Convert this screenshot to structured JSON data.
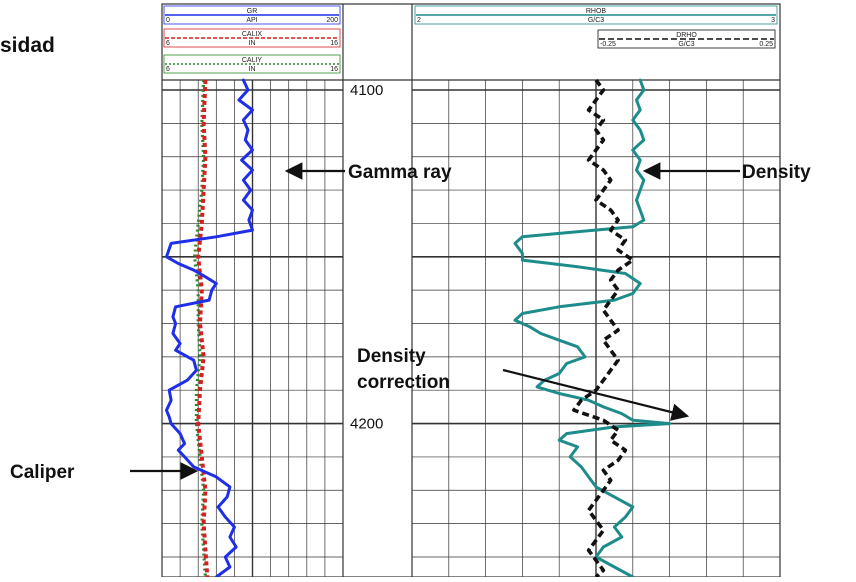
{
  "page": {
    "title_fragment": "sidad"
  },
  "colors": {
    "gamma_ray": "#1f2ee8",
    "density": "#1f8c8c",
    "density_correction": "#111111",
    "caliper_x": "#d42020",
    "caliper_y": "#2a8a2a",
    "grid": "#333333"
  },
  "chart_data": {
    "type": "line",
    "depth_axis": {
      "ticks": [
        "4100",
        "4200"
      ],
      "range": [
        4097,
        4246
      ]
    },
    "tracks": [
      {
        "name": "track-1",
        "curves": [
          {
            "mnemonic": "GR",
            "min": "0",
            "unit": "API",
            "max": "200",
            "style": "solid",
            "color": "#1f2ee8",
            "scale": [
              0,
              200
            ],
            "points": [
              [
                4097,
                90
              ],
              [
                4100,
                95
              ],
              [
                4103,
                85
              ],
              [
                4106,
                100
              ],
              [
                4109,
                90
              ],
              [
                4112,
                95
              ],
              [
                4115,
                92
              ],
              [
                4118,
                100
              ],
              [
                4121,
                88
              ],
              [
                4124,
                100
              ],
              [
                4127,
                90
              ],
              [
                4130,
                98
              ],
              [
                4133,
                90
              ],
              [
                4136,
                100
              ],
              [
                4139,
                96
              ],
              [
                4142,
                100
              ],
              [
                4144,
                60
              ],
              [
                4146,
                10
              ],
              [
                4150,
                5
              ],
              [
                4152,
                18
              ],
              [
                4154,
                35
              ],
              [
                4156,
                48
              ],
              [
                4158,
                60
              ],
              [
                4160,
                55
              ],
              [
                4163,
                52
              ],
              [
                4165,
                15
              ],
              [
                4168,
                12
              ],
              [
                4170,
                15
              ],
              [
                4173,
                12
              ],
              [
                4176,
                20
              ],
              [
                4178,
                15
              ],
              [
                4181,
                35
              ],
              [
                4184,
                38
              ],
              [
                4187,
                28
              ],
              [
                4190,
                8
              ],
              [
                4193,
                10
              ],
              [
                4196,
                5
              ],
              [
                4198,
                8
              ],
              [
                4200,
                10
              ],
              [
                4203,
                20
              ],
              [
                4206,
                25
              ],
              [
                4208,
                18
              ],
              [
                4210,
                25
              ],
              [
                4213,
                35
              ],
              [
                4216,
                60
              ],
              [
                4219,
                75
              ],
              [
                4222,
                72
              ],
              [
                4225,
                62
              ],
              [
                4228,
                70
              ],
              [
                4231,
                80
              ],
              [
                4234,
                75
              ],
              [
                4237,
                82
              ],
              [
                4240,
                70
              ],
              [
                4243,
                75
              ],
              [
                4246,
                60
              ]
            ]
          },
          {
            "mnemonic": "CALIX",
            "min": "6",
            "unit": "IN",
            "max": "16",
            "style": "dashed",
            "color": "#d42020",
            "scale": [
              6,
              16
            ],
            "points": [
              [
                4097,
                8.4
              ],
              [
                4110,
                8.3
              ],
              [
                4120,
                8.4
              ],
              [
                4130,
                8.3
              ],
              [
                4140,
                8.2
              ],
              [
                4145,
                8.1
              ],
              [
                4150,
                8.0
              ],
              [
                4160,
                8.2
              ],
              [
                4170,
                8.1
              ],
              [
                4180,
                8.3
              ],
              [
                4190,
                8.1
              ],
              [
                4200,
                8.0
              ],
              [
                4210,
                8.2
              ],
              [
                4220,
                8.4
              ],
              [
                4230,
                8.3
              ],
              [
                4246,
                8.5
              ]
            ]
          },
          {
            "mnemonic": "CALIY",
            "min": "6",
            "unit": "IN",
            "max": "16",
            "style": "dotted",
            "color": "#2a8a2a",
            "scale": [
              6,
              16
            ],
            "points": [
              [
                4097,
                8.3
              ],
              [
                4110,
                8.2
              ],
              [
                4120,
                8.3
              ],
              [
                4130,
                8.2
              ],
              [
                4140,
                8.0
              ],
              [
                4145,
                7.9
              ],
              [
                4150,
                7.8
              ],
              [
                4160,
                8.0
              ],
              [
                4170,
                8.0
              ],
              [
                4180,
                8.1
              ],
              [
                4190,
                7.9
              ],
              [
                4200,
                7.9
              ],
              [
                4210,
                8.1
              ],
              [
                4220,
                8.3
              ],
              [
                4230,
                8.2
              ],
              [
                4246,
                8.4
              ]
            ]
          }
        ]
      },
      {
        "name": "track-2",
        "curves": [
          {
            "mnemonic": "RHOB",
            "min": "2",
            "unit": "G/C3",
            "max": "3",
            "style": "solid",
            "color": "#1f8c8c",
            "scale": [
              2,
              3
            ],
            "points": [
              [
                4097,
                2.62
              ],
              [
                4100,
                2.63
              ],
              [
                4103,
                2.61
              ],
              [
                4106,
                2.62
              ],
              [
                4109,
                2.6
              ],
              [
                4112,
                2.62
              ],
              [
                4115,
                2.63
              ],
              [
                4118,
                2.6
              ],
              [
                4121,
                2.62
              ],
              [
                4124,
                2.61
              ],
              [
                4127,
                2.63
              ],
              [
                4130,
                2.62
              ],
              [
                4133,
                2.61
              ],
              [
                4136,
                2.62
              ],
              [
                4139,
                2.63
              ],
              [
                4141,
                2.6
              ],
              [
                4143,
                2.4
              ],
              [
                4144,
                2.3
              ],
              [
                4146,
                2.28
              ],
              [
                4149,
                2.3
              ],
              [
                4151,
                2.3
              ],
              [
                4153,
                2.45
              ],
              [
                4155,
                2.58
              ],
              [
                4158,
                2.62
              ],
              [
                4161,
                2.6
              ],
              [
                4163,
                2.55
              ],
              [
                4165,
                2.4
              ],
              [
                4167,
                2.3
              ],
              [
                4169,
                2.28
              ],
              [
                4171,
                2.32
              ],
              [
                4173,
                2.35
              ],
              [
                4175,
                2.4
              ],
              [
                4177,
                2.45
              ],
              [
                4180,
                2.47
              ],
              [
                4182,
                2.42
              ],
              [
                4185,
                2.4
              ],
              [
                4187,
                2.36
              ],
              [
                4189,
                2.34
              ],
              [
                4191,
                2.4
              ],
              [
                4193,
                2.48
              ],
              [
                4195,
                2.52
              ],
              [
                4197,
                2.57
              ],
              [
                4199,
                2.6
              ],
              [
                4200,
                2.7
              ],
              [
                4201,
                2.55
              ],
              [
                4203,
                2.42
              ],
              [
                4205,
                2.4
              ],
              [
                4207,
                2.45
              ],
              [
                4210,
                2.43
              ],
              [
                4213,
                2.46
              ],
              [
                4216,
                2.48
              ],
              [
                4219,
                2.5
              ],
              [
                4222,
                2.55
              ],
              [
                4225,
                2.6
              ],
              [
                4228,
                2.58
              ],
              [
                4231,
                2.55
              ],
              [
                4234,
                2.57
              ],
              [
                4237,
                2.52
              ],
              [
                4240,
                2.5
              ],
              [
                4243,
                2.55
              ],
              [
                4246,
                2.6
              ]
            ]
          },
          {
            "mnemonic": "DRHO",
            "min": "-0.25",
            "unit": "G/C3",
            "max": "0.25",
            "style": "dashed",
            "color": "#111111",
            "scale": [
              -0.25,
              0.25
            ],
            "points": [
              [
                4097,
                0.0
              ],
              [
                4100,
                0.01
              ],
              [
                4103,
                0.0
              ],
              [
                4106,
                -0.01
              ],
              [
                4109,
                0.01
              ],
              [
                4112,
                0.0
              ],
              [
                4115,
                0.01
              ],
              [
                4118,
                0.0
              ],
              [
                4121,
                -0.01
              ],
              [
                4124,
                0.01
              ],
              [
                4127,
                0.02
              ],
              [
                4130,
                0.01
              ],
              [
                4133,
                0.0
              ],
              [
                4136,
                0.02
              ],
              [
                4139,
                0.03
              ],
              [
                4142,
                0.02
              ],
              [
                4145,
                0.04
              ],
              [
                4148,
                0.03
              ],
              [
                4151,
                0.05
              ],
              [
                4154,
                0.03
              ],
              [
                4157,
                0.02
              ],
              [
                4160,
                0.03
              ],
              [
                4163,
                0.02
              ],
              [
                4166,
                0.01
              ],
              [
                4169,
                0.02
              ],
              [
                4172,
                0.03
              ],
              [
                4175,
                0.01
              ],
              [
                4178,
                0.02
              ],
              [
                4181,
                0.03
              ],
              [
                4184,
                0.02
              ],
              [
                4187,
                0.01
              ],
              [
                4190,
                0.0
              ],
              [
                4193,
                -0.02
              ],
              [
                4196,
                -0.03
              ],
              [
                4199,
                0.01
              ],
              [
                4202,
                0.03
              ],
              [
                4205,
                0.02
              ],
              [
                4208,
                0.04
              ],
              [
                4211,
                0.03
              ],
              [
                4214,
                0.01
              ],
              [
                4217,
                0.02
              ],
              [
                4220,
                0.01
              ],
              [
                4223,
                0.0
              ],
              [
                4226,
                -0.01
              ],
              [
                4229,
                0.0
              ],
              [
                4232,
                0.01
              ],
              [
                4235,
                0.0
              ],
              [
                4238,
                -0.01
              ],
              [
                4241,
                0.0
              ],
              [
                4244,
                0.01
              ],
              [
                4246,
                0.0
              ]
            ]
          }
        ]
      }
    ],
    "annotations": [
      {
        "text": "Gamma ray"
      },
      {
        "text": "Density"
      },
      {
        "text": "Density\ncorrection"
      },
      {
        "text": "Caliper"
      }
    ]
  }
}
